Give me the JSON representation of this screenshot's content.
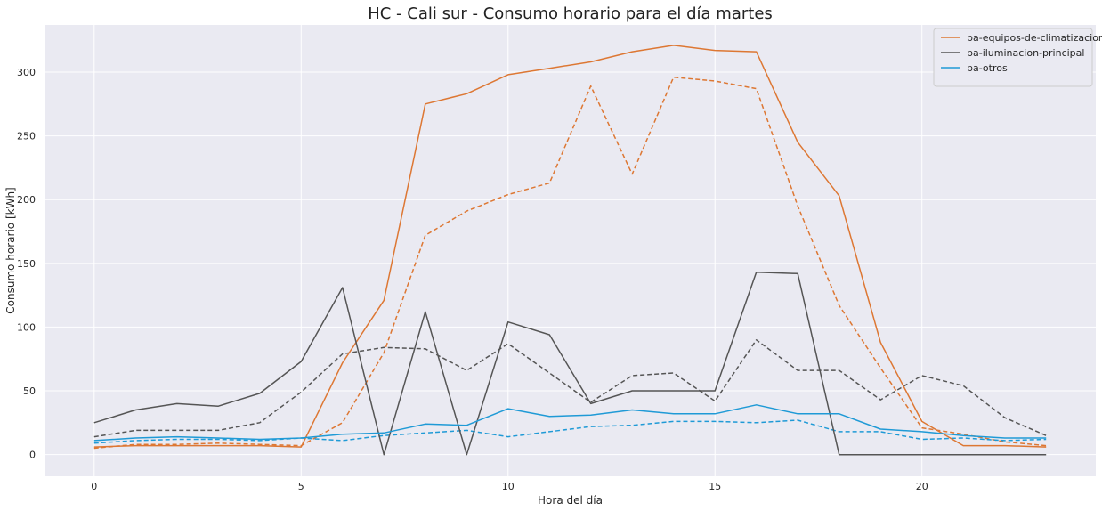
{
  "chart_data": {
    "type": "line",
    "title": "HC - Cali sur - Consumo horario para el día martes",
    "xlabel": "Hora del día",
    "ylabel": "Consumo horario [kWh]",
    "xlim": [
      -1.2,
      24.2
    ],
    "ylim": [
      -17,
      337
    ],
    "xticks": [
      0,
      5,
      10,
      15,
      20
    ],
    "yticks": [
      0,
      50,
      100,
      150,
      200,
      250,
      300
    ],
    "grid": true,
    "legend_position": "top-right",
    "x": [
      0,
      1,
      2,
      3,
      4,
      5,
      6,
      7,
      8,
      9,
      10,
      11,
      12,
      13,
      14,
      15,
      16,
      17,
      18,
      19,
      20,
      21,
      22,
      23
    ],
    "series": [
      {
        "name": "pa-equipos-de-climatizacion",
        "color": "#dd7733",
        "dash": "solid",
        "legend": true,
        "values": [
          6,
          7,
          7,
          7,
          7,
          6,
          72,
          121,
          275,
          283,
          298,
          303,
          308,
          316,
          321,
          317,
          316,
          245,
          203,
          88,
          26,
          7,
          7,
          6
        ]
      },
      {
        "name": "pa-iluminacion-principal",
        "color": "#555555",
        "dash": "solid",
        "legend": true,
        "values": [
          25,
          35,
          40,
          38,
          48,
          73,
          131,
          0,
          112,
          0,
          104,
          94,
          40,
          50,
          50,
          50,
          143,
          142,
          0,
          0,
          0,
          0,
          0,
          0
        ]
      },
      {
        "name": "pa-otros",
        "color": "#1f9ad6",
        "dash": "solid",
        "legend": true,
        "values": [
          11,
          13,
          14,
          13,
          12,
          13,
          16,
          17,
          24,
          23,
          36,
          30,
          31,
          35,
          32,
          32,
          39,
          32,
          32,
          20,
          18,
          15,
          13,
          13
        ]
      },
      {
        "name": "",
        "color": "#dd7733",
        "dash": "dashed",
        "legend": false,
        "values": [
          5,
          8,
          8,
          9,
          8,
          7,
          25,
          80,
          172,
          191,
          204,
          213,
          289,
          220,
          296,
          293,
          287,
          195,
          117,
          68,
          21,
          16,
          10,
          7
        ]
      },
      {
        "name": "",
        "color": "#555555",
        "dash": "dashed",
        "legend": false,
        "values": [
          14,
          19,
          19,
          19,
          25,
          49,
          79,
          84,
          83,
          66,
          87,
          64,
          41,
          62,
          64,
          42,
          90,
          66,
          66,
          43,
          62,
          54,
          29,
          15
        ]
      },
      {
        "name": "",
        "color": "#1f9ad6",
        "dash": "dashed",
        "legend": false,
        "values": [
          9,
          11,
          12,
          12,
          11,
          13,
          11,
          15,
          17,
          19,
          14,
          18,
          22,
          23,
          26,
          26,
          25,
          27,
          18,
          18,
          12,
          13,
          11,
          12
        ]
      }
    ]
  }
}
